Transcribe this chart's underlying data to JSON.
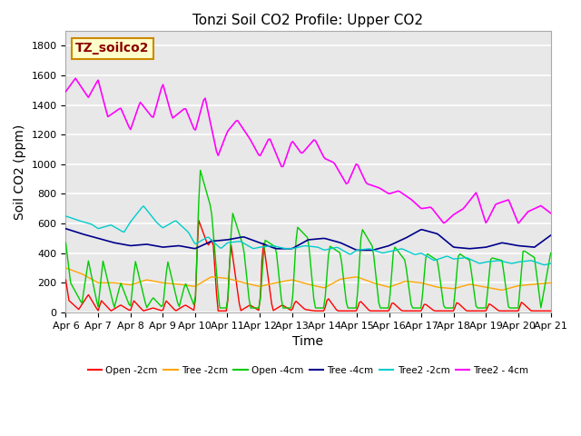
{
  "title": "Tonzi Soil CO2 Profile: Upper CO2",
  "ylabel": "Soil CO2 (ppm)",
  "xlabel": "Time",
  "watermark": "TZ_soilco2",
  "ylim": [
    0,
    1900
  ],
  "yticks": [
    0,
    200,
    400,
    600,
    800,
    1000,
    1200,
    1400,
    1600,
    1800
  ],
  "x_tick_labels": [
    "Apr 6",
    "Apr 7",
    "Apr 8",
    "Apr 9",
    "Apr 10",
    "Apr 11",
    "Apr 12",
    "Apr 13",
    "Apr 14",
    "Apr 15",
    "Apr 16",
    "Apr 17",
    "Apr 18",
    "Apr 19",
    "Apr 20",
    "Apr 21"
  ],
  "series_colors": {
    "open_2cm": "#ff0000",
    "tree_2cm": "#ffa500",
    "open_4cm": "#00cc00",
    "tree_4cm": "#00008b",
    "tree2_2cm": "#00cccc",
    "tree2_4cm": "#ff00ff"
  },
  "legend_labels": [
    "Open -2cm",
    "Tree -2cm",
    "Open -4cm",
    "Tree -4cm",
    "Tree2 -2cm",
    "Tree2 - 4cm"
  ],
  "plot_bg_color": "#e8e8e8",
  "title_fontsize": 11,
  "axis_label_fontsize": 10,
  "tick_fontsize": 8,
  "watermark_fontsize": 10
}
